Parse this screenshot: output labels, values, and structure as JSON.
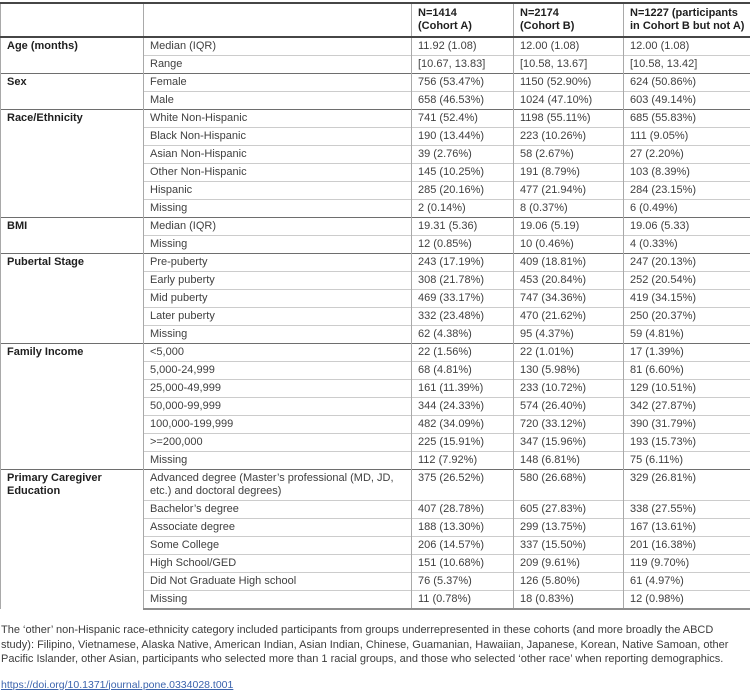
{
  "table": {
    "headers": [
      "",
      "",
      "N=1414\n(Cohort A)",
      "N=2174\n(Cohort B)",
      "N=1227 (participants\nin Cohort B but not A)"
    ],
    "groups": [
      {
        "category": "Age (months)",
        "rows": [
          {
            "label": "Median (IQR)",
            "a": "11.92 (1.08)",
            "b": "12.00 (1.08)",
            "c": "12.00 (1.08)"
          },
          {
            "label": "Range",
            "a": "[10.67, 13.83]",
            "b": "[10.58, 13.67]",
            "c": "[10.58, 13.42]"
          }
        ]
      },
      {
        "category": "Sex",
        "rows": [
          {
            "label": "Female",
            "a": "756 (53.47%)",
            "b": "1150 (52.90%)",
            "c": "624 (50.86%)"
          },
          {
            "label": "Male",
            "a": "658 (46.53%)",
            "b": "1024 (47.10%)",
            "c": "603 (49.14%)"
          }
        ]
      },
      {
        "category": "Race/Ethnicity",
        "rows": [
          {
            "label": "White Non-Hispanic",
            "a": "741 (52.4%)",
            "b": "1198 (55.11%)",
            "c": "685 (55.83%)"
          },
          {
            "label": "Black Non-Hispanic",
            "a": "190 (13.44%)",
            "b": "223 (10.26%)",
            "c": "111 (9.05%)"
          },
          {
            "label": "Asian Non-Hispanic",
            "a": "39 (2.76%)",
            "b": "58 (2.67%)",
            "c": "27 (2.20%)"
          },
          {
            "label": "Other Non-Hispanic",
            "a": "145 (10.25%)",
            "b": "191 (8.79%)",
            "c": "103 (8.39%)"
          },
          {
            "label": "Hispanic",
            "a": "285 (20.16%)",
            "b": "477 (21.94%)",
            "c": "284 (23.15%)"
          },
          {
            "label": "Missing",
            "a": "2 (0.14%)",
            "b": "8 (0.37%)",
            "c": "6 (0.49%)"
          }
        ]
      },
      {
        "category": "BMI",
        "rows": [
          {
            "label": "Median (IQR)",
            "a": "19.31 (5.36)",
            "b": "19.06 (5.19)",
            "c": "19.06 (5.33)"
          },
          {
            "label": "Missing",
            "a": "12 (0.85%)",
            "b": "10 (0.46%)",
            "c": "4 (0.33%)"
          }
        ]
      },
      {
        "category": "Pubertal Stage",
        "rows": [
          {
            "label": "Pre-puberty",
            "a": "243 (17.19%)",
            "b": "409 (18.81%)",
            "c": "247 (20.13%)"
          },
          {
            "label": "Early puberty",
            "a": "308 (21.78%)",
            "b": "453 (20.84%)",
            "c": "252 (20.54%)"
          },
          {
            "label": "Mid puberty",
            "a": "469 (33.17%)",
            "b": "747 (34.36%)",
            "c": "419 (34.15%)"
          },
          {
            "label": "Later puberty",
            "a": "332 (23.48%)",
            "b": "470 (21.62%)",
            "c": "250 (20.37%)"
          },
          {
            "label": "Missing",
            "a": "62 (4.38%)",
            "b": "95 (4.37%)",
            "c": "59 (4.81%)"
          }
        ]
      },
      {
        "category": "Family Income",
        "rows": [
          {
            "label": "<5,000",
            "a": "22 (1.56%)",
            "b": "22 (1.01%)",
            "c": "17 (1.39%)"
          },
          {
            "label": "5,000-24,999",
            "a": "68 (4.81%)",
            "b": "130 (5.98%)",
            "c": "81 (6.60%)"
          },
          {
            "label": "25,000-49,999",
            "a": "161 (11.39%)",
            "b": "233 (10.72%)",
            "c": "129 (10.51%)"
          },
          {
            "label": "50,000-99,999",
            "a": "344 (24.33%)",
            "b": "574 (26.40%)",
            "c": "342 (27.87%)"
          },
          {
            "label": "100,000-199,999",
            "a": "482 (34.09%)",
            "b": "720 (33.12%)",
            "c": "390 (31.79%)"
          },
          {
            "label": ">=200,000",
            "a": "225 (15.91%)",
            "b": "347 (15.96%)",
            "c": "193 (15.73%)"
          },
          {
            "label": "Missing",
            "a": "112 (7.92%)",
            "b": "148 (6.81%)",
            "c": "75 (6.11%)"
          }
        ]
      },
      {
        "category": "Primary Caregiver Education",
        "rows": [
          {
            "label": "Advanced degree (Master’s professional (MD, JD, etc.) and doctoral degrees)",
            "a": "375 (26.52%)",
            "b": "580 (26.68%)",
            "c": "329 (26.81%)"
          },
          {
            "label": "Bachelor’s degree",
            "a": "407 (28.78%)",
            "b": "605 (27.83%)",
            "c": "338 (27.55%)"
          },
          {
            "label": "Associate degree",
            "a": "188 (13.30%)",
            "b": "299 (13.75%)",
            "c": "167 (13.61%)"
          },
          {
            "label": "Some College",
            "a": "206 (14.57%)",
            "b": "337 (15.50%)",
            "c": "201 (16.38%)"
          },
          {
            "label": "High School/GED",
            "a": "151 (10.68%)",
            "b": "209 (9.61%)",
            "c": "119 (9.70%)"
          },
          {
            "label": "Did Not Graduate High school",
            "a": "76 (5.37%)",
            "b": "126 (5.80%)",
            "c": "61 (4.97%)"
          },
          {
            "label": "Missing",
            "a": "11 (0.78%)",
            "b": "18 (0.83%)",
            "c": "12 (0.98%)"
          }
        ]
      }
    ]
  },
  "footnote": {
    "text": "The ‘other’ non-Hispanic race-ethnicity category included participants from groups underrepresented in these cohorts (and more broadly the ABCD study): Filipino, Vietnamese, Alaska Native, American Indian, Asian Indian, Chinese, Guamanian, Hawaiian, Japanese, Korean, Native Samoan, other Pacific Islander, other Asian, participants who selected more than 1 racial groups, and those who selected ‘other race’ when reporting demographics.",
    "doi": "https://doi.org/10.1371/journal.pone.0334028.t001"
  }
}
